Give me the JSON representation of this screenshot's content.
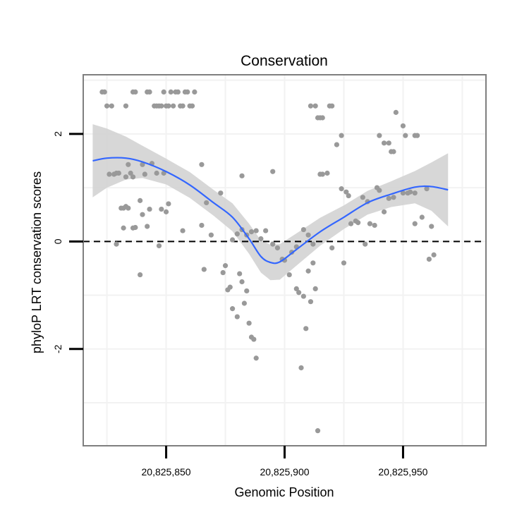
{
  "chart_data": {
    "type": "scatter",
    "title": "Conservation",
    "xlabel": "Genomic Position",
    "ylabel": "phyloP LRT conservation scores",
    "xlim": [
      20825815,
      20825985
    ],
    "ylim": [
      -3.8,
      3.1
    ],
    "x_ticks": [
      20825850,
      20825900,
      20825950
    ],
    "x_tick_labels": [
      "20,825,850",
      "20,825,900",
      "20,825,950"
    ],
    "y_ticks": [
      -2,
      0,
      2
    ],
    "y_tick_labels": [
      "-2",
      "0",
      "2"
    ],
    "grid": true,
    "reference_line": {
      "y": 0,
      "style": "dashed"
    },
    "colors": {
      "points": "#999999",
      "smooth": "#3366ff",
      "band": "#d3d3d3",
      "grid": "#f2f2f2",
      "frame": "#7f7f7f"
    },
    "points": [
      [
        20825823,
        2.78
      ],
      [
        20825824,
        2.78
      ],
      [
        20825825,
        2.52
      ],
      [
        20825827,
        2.52
      ],
      [
        20825833,
        2.52
      ],
      [
        20825836,
        2.78
      ],
      [
        20825837,
        2.78
      ],
      [
        20825842,
        2.78
      ],
      [
        20825843,
        2.78
      ],
      [
        20825845,
        2.52
      ],
      [
        20825846,
        2.52
      ],
      [
        20825847,
        2.52
      ],
      [
        20825848,
        2.52
      ],
      [
        20825849,
        2.78
      ],
      [
        20825850,
        2.52
      ],
      [
        20825851,
        2.52
      ],
      [
        20825852,
        2.78
      ],
      [
        20825853,
        2.52
      ],
      [
        20825854,
        2.78
      ],
      [
        20825855,
        2.78
      ],
      [
        20825856,
        2.52
      ],
      [
        20825857,
        2.52
      ],
      [
        20825858,
        2.78
      ],
      [
        20825859,
        2.78
      ],
      [
        20825860,
        2.52
      ],
      [
        20825861,
        2.52
      ],
      [
        20825862,
        2.78
      ],
      [
        20825911,
        2.52
      ],
      [
        20825913,
        2.52
      ],
      [
        20825914,
        2.3
      ],
      [
        20825915,
        2.3
      ],
      [
        20825916,
        2.3
      ],
      [
        20825919,
        2.52
      ],
      [
        20825920,
        2.52
      ],
      [
        20825922,
        1.8
      ],
      [
        20825924,
        1.97
      ],
      [
        20825940,
        1.97
      ],
      [
        20825942,
        1.83
      ],
      [
        20825944,
        1.83
      ],
      [
        20825945,
        1.67
      ],
      [
        20825946,
        1.67
      ],
      [
        20825947,
        2.4
      ],
      [
        20825950,
        2.15
      ],
      [
        20825951,
        1.97
      ],
      [
        20825955,
        1.97
      ],
      [
        20825956,
        1.97
      ],
      [
        20825826,
        1.25
      ],
      [
        20825828,
        1.25
      ],
      [
        20825829,
        1.27
      ],
      [
        20825830,
        1.27
      ],
      [
        20825833,
        1.2
      ],
      [
        20825834,
        1.43
      ],
      [
        20825835,
        1.27
      ],
      [
        20825836,
        1.2
      ],
      [
        20825840,
        1.43
      ],
      [
        20825841,
        1.25
      ],
      [
        20825844,
        1.45
      ],
      [
        20825846,
        1.27
      ],
      [
        20825849,
        1.27
      ],
      [
        20825865,
        1.43
      ],
      [
        20825882,
        1.22
      ],
      [
        20825895,
        1.3
      ],
      [
        20825915,
        1.25
      ],
      [
        20825916,
        1.25
      ],
      [
        20825918,
        1.27
      ],
      [
        20825831,
        0.62
      ],
      [
        20825832,
        0.62
      ],
      [
        20825832,
        0.25
      ],
      [
        20825833,
        0.65
      ],
      [
        20825834,
        0.62
      ],
      [
        20825836,
        0.25
      ],
      [
        20825837,
        0.26
      ],
      [
        20825839,
        0.76
      ],
      [
        20825840,
        0.5
      ],
      [
        20825842,
        0.28
      ],
      [
        20825843,
        0.6
      ],
      [
        20825848,
        0.6
      ],
      [
        20825850,
        0.55
      ],
      [
        20825851,
        0.7
      ],
      [
        20825857,
        0.2
      ],
      [
        20825865,
        0.3
      ],
      [
        20825867,
        0.72
      ],
      [
        20825869,
        0.12
      ],
      [
        20825873,
        0.9
      ],
      [
        20825878,
        0.03
      ],
      [
        20825880,
        0.14
      ],
      [
        20825882,
        0.22
      ],
      [
        20825884,
        0.12
      ],
      [
        20825886,
        0.18
      ],
      [
        20825888,
        0.2
      ],
      [
        20825890,
        0.05
      ],
      [
        20825892,
        0.2
      ],
      [
        20825895,
        -0.05
      ],
      [
        20825897,
        -0.12
      ],
      [
        20825905,
        -0.1
      ],
      [
        20825908,
        0.22
      ],
      [
        20825910,
        0.12
      ],
      [
        20825912,
        -0.05
      ],
      [
        20825920,
        -0.12
      ],
      [
        20825924,
        0.98
      ],
      [
        20825926,
        0.92
      ],
      [
        20825927,
        0.85
      ],
      [
        20825928,
        0.33
      ],
      [
        20825930,
        0.38
      ],
      [
        20825931,
        0.35
      ],
      [
        20825933,
        0.82
      ],
      [
        20825935,
        0.74
      ],
      [
        20825936,
        0.33
      ],
      [
        20825938,
        0.3
      ],
      [
        20825939,
        1.0
      ],
      [
        20825940,
        0.95
      ],
      [
        20825942,
        0.55
      ],
      [
        20825944,
        0.8
      ],
      [
        20825946,
        0.82
      ],
      [
        20825950,
        0.9
      ],
      [
        20825952,
        0.9
      ],
      [
        20825953,
        0.92
      ],
      [
        20825955,
        0.9
      ],
      [
        20825958,
        0.45
      ],
      [
        20825960,
        0.98
      ],
      [
        20825962,
        0.28
      ],
      [
        20825963,
        -0.25
      ],
      [
        20825961,
        -0.33
      ],
      [
        20825955,
        0.33
      ],
      [
        20825829,
        -0.05
      ],
      [
        20825839,
        -0.62
      ],
      [
        20825847,
        -0.08
      ],
      [
        20825866,
        -0.52
      ],
      [
        20825874,
        -0.58
      ],
      [
        20825875,
        -0.45
      ],
      [
        20825876,
        -0.9
      ],
      [
        20825877,
        -0.85
      ],
      [
        20825878,
        -1.25
      ],
      [
        20825880,
        -1.4
      ],
      [
        20825881,
        -0.6
      ],
      [
        20825882,
        -0.75
      ],
      [
        20825883,
        -1.15
      ],
      [
        20825884,
        -0.92
      ],
      [
        20825885,
        -1.52
      ],
      [
        20825886,
        -1.78
      ],
      [
        20825887,
        -1.82
      ],
      [
        20825888,
        -2.17
      ],
      [
        20825899,
        -0.33
      ],
      [
        20825900,
        -0.35
      ],
      [
        20825902,
        -0.62
      ],
      [
        20825903,
        -0.2
      ],
      [
        20825905,
        -0.88
      ],
      [
        20825906,
        -0.95
      ],
      [
        20825907,
        -2.35
      ],
      [
        20825908,
        -1.02
      ],
      [
        20825909,
        -1.62
      ],
      [
        20825910,
        -0.55
      ],
      [
        20825911,
        -1.12
      ],
      [
        20825912,
        -0.4
      ],
      [
        20825913,
        -0.88
      ],
      [
        20825914,
        -3.52
      ],
      [
        20825925,
        -0.4
      ],
      [
        20825934,
        -0.05
      ]
    ],
    "smooth_x": [
      20825819,
      20825825,
      20825833,
      20825840,
      20825850,
      20825860,
      20825870,
      20825878,
      20825885,
      20825890,
      20825894,
      20825898,
      20825905,
      20825915,
      20825925,
      20825935,
      20825945,
      20825955,
      20825962,
      20825969
    ],
    "smooth_y": [
      1.5,
      1.55,
      1.55,
      1.48,
      1.3,
      1.05,
      0.72,
      0.45,
      0.05,
      -0.28,
      -0.39,
      -0.38,
      -0.15,
      0.18,
      0.45,
      0.72,
      0.88,
      1.01,
      1.02,
      0.96
    ],
    "band_se": [
      0.68,
      0.55,
      0.4,
      0.3,
      0.24,
      0.24,
      0.24,
      0.26,
      0.28,
      0.3,
      0.33,
      0.33,
      0.3,
      0.26,
      0.22,
      0.22,
      0.24,
      0.3,
      0.45,
      0.68
    ]
  }
}
